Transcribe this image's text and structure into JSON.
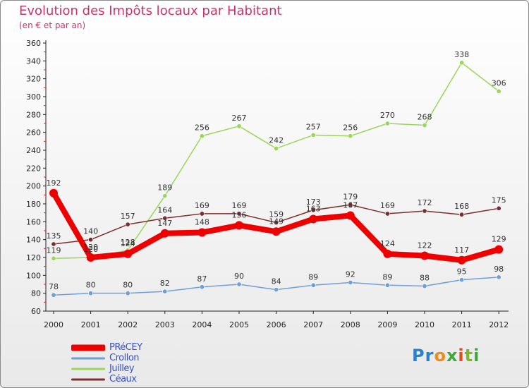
{
  "title": "Evolution des Impôts locaux par Habitant",
  "subtitle": "(en € et par an)",
  "logo": {
    "text": "Proxiti",
    "letters": [
      "P",
      "r",
      "o",
      "x",
      "i",
      "t",
      "i"
    ],
    "colors": [
      "#2a7fd0",
      "#2a7fd0",
      "#f08a1c",
      "#3aa83a",
      "#e64a1c",
      "#7ab82a",
      "#3aa83a"
    ]
  },
  "chart_data": {
    "type": "line",
    "title": "Evolution des Impôts locaux par Habitant",
    "subtitle": "(en € et par an)",
    "xlabel": "",
    "ylabel": "",
    "ylim": [
      60,
      360
    ],
    "yticks": [
      60,
      80,
      100,
      120,
      140,
      160,
      180,
      200,
      220,
      240,
      260,
      280,
      300,
      320,
      340,
      360
    ],
    "grid": false,
    "legend_position": "bottom-left",
    "categories": [
      "2000",
      "2001",
      "2002",
      "2003",
      "2004",
      "2005",
      "2006",
      "2007",
      "2008",
      "2009",
      "2010",
      "2011",
      "2012"
    ],
    "series": [
      {
        "name": "PRéCEY",
        "color": "#ee0000",
        "values": [
          192,
          120,
          124,
          147,
          148,
          156,
          149,
          163,
          167,
          124,
          122,
          117,
          129
        ],
        "labels": [
          "192",
          "120",
          "124",
          "147",
          "148",
          "156",
          "149",
          "163",
          "167",
          "124",
          "122",
          "117",
          "129"
        ]
      },
      {
        "name": "Crollon",
        "color": "#6f9fd6",
        "values": [
          78,
          80,
          80,
          82,
          87,
          90,
          84,
          89,
          92,
          89,
          88,
          95,
          98
        ],
        "labels": [
          "78",
          "80",
          "80",
          "82",
          "87",
          "90",
          "84",
          "89",
          "92",
          "89",
          "88",
          "95",
          "98"
        ]
      },
      {
        "name": "Juilley",
        "color": "#9ad65a",
        "values": [
          119,
          120,
          128,
          189,
          256,
          267,
          242,
          257,
          256,
          270,
          268,
          338,
          306
        ],
        "labels": [
          "119",
          "120",
          "128",
          "189",
          "256",
          "267",
          "242",
          "257",
          "256",
          "270",
          "268",
          "338",
          "306"
        ]
      },
      {
        "name": "Céaux",
        "color": "#7a2e2e",
        "values": [
          135,
          140,
          157,
          164,
          169,
          169,
          159,
          173,
          179,
          169,
          172,
          168,
          175
        ],
        "labels": [
          "135",
          "140",
          "157",
          "164",
          "169",
          "169",
          "159",
          "173",
          "179",
          "169",
          "172",
          "168",
          "175"
        ]
      }
    ]
  }
}
